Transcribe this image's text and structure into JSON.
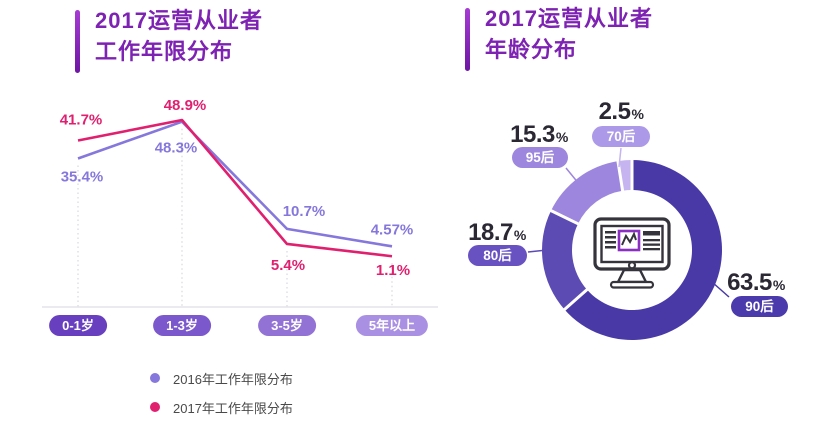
{
  "left_panel": {
    "title_line1": "2017运营从业者",
    "title_line2": "工作年限分布",
    "legend": [
      {
        "label": "2016年工作年限分布",
        "color": "#8577DB"
      },
      {
        "label": "2017年工作年限分布",
        "color": "#E0206F"
      }
    ]
  },
  "right_panel": {
    "title_line1": "2017运营从业者",
    "title_line2": "年龄分布",
    "center_icon": "monitor-chart-icon"
  },
  "chart_data": [
    {
      "type": "line",
      "title": "2017运营从业者工作年限分布",
      "categories": [
        {
          "label": "0-1岁",
          "pill_color": "#6840BF"
        },
        {
          "label": "1-3岁",
          "pill_color": "#7B58CB"
        },
        {
          "label": "3-5岁",
          "pill_color": "#9273D5"
        },
        {
          "label": "5年以上",
          "pill_color": "#AA90E2"
        }
      ],
      "series": [
        {
          "name": "2016年工作年限分布",
          "color": "#8577DB",
          "values": [
            35.4,
            48.3,
            10.7,
            4.57
          ],
          "value_labels": [
            "35.4%",
            "48.3%",
            "10.7%",
            "4.57%"
          ]
        },
        {
          "name": "2017年工作年限分布",
          "color": "#E0206F",
          "values": [
            41.7,
            48.9,
            5.4,
            1.1
          ],
          "value_labels": [
            "41.7%",
            "48.9%",
            "5.4%",
            "1.1%"
          ]
        }
      ],
      "ylim": [
        0,
        48.9
      ],
      "grid": "dotted-vertical",
      "legend_position": "bottom-left"
    },
    {
      "type": "donut",
      "title": "2017运营从业者年龄分布",
      "start_angle_deg": 0,
      "direction": "clockwise",
      "center_icon": "monitor-chart-icon",
      "slices": [
        {
          "label": "90后",
          "value": 63.5,
          "value_label": "63.5%",
          "color": "#4839A7",
          "pill_color": "#4B3AAB"
        },
        {
          "label": "80后",
          "value": 18.7,
          "value_label": "18.7%",
          "color": "#5C4BB3",
          "pill_color": "#6852C2"
        },
        {
          "label": "95后",
          "value": 15.3,
          "value_label": "15.3%",
          "color": "#9D86DD",
          "pill_color": "#9D86DD"
        },
        {
          "label": "70后",
          "value": 2.5,
          "value_label": "2.5%",
          "color": "#C5B4F0",
          "pill_color": "#AC99E7"
        }
      ]
    }
  ]
}
